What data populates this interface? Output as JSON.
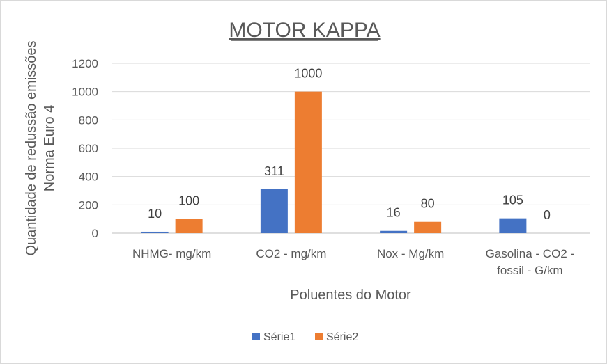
{
  "chart_data": {
    "type": "bar",
    "title": "MOTOR KAPPA",
    "xlabel": "Poluentes do Motor",
    "ylabel_lines": [
      "Quantidade de redussão emissões",
      "Norma Euro 4"
    ],
    "categories": [
      [
        "NHMG- mg/km"
      ],
      [
        "CO2 - mg/km"
      ],
      [
        "Nox - Mg/km"
      ],
      [
        "Gasolina - CO2 -",
        "fossil - G/km"
      ]
    ],
    "series": [
      {
        "name": "Série1",
        "color": "#4472c4",
        "values": [
          10,
          311,
          16,
          105
        ]
      },
      {
        "name": "Série2",
        "color": "#ed7d31",
        "values": [
          100,
          1000,
          80,
          0
        ]
      }
    ],
    "ylim": [
      0,
      1200
    ],
    "yticks": [
      0,
      200,
      400,
      600,
      800,
      1000,
      1200
    ],
    "grid": true,
    "legend_position": "bottom",
    "data_labels": true
  }
}
